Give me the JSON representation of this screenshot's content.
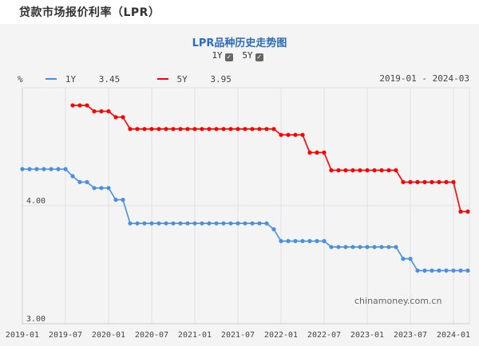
{
  "header": {
    "title": "贷款市场报价利率（LPR）"
  },
  "chart_header": {
    "title": "LPR品种历史走势图",
    "toggles": [
      {
        "label": "1Y",
        "checked": true
      },
      {
        "label": "5Y",
        "checked": true
      }
    ]
  },
  "legend": {
    "unit": "%",
    "items": [
      {
        "name": "1Y",
        "value": "3.45",
        "color": "#4a90e2"
      },
      {
        "name": "5Y",
        "value": "3.95",
        "color": "#ff0000"
      }
    ],
    "range": "2019-01 - 2024-03"
  },
  "watermark": "chinamoney.com.cn",
  "chart_data": {
    "type": "line",
    "title": "LPR品种历史走势图",
    "ylabel": "%",
    "ylim": [
      3.0,
      5.0
    ],
    "yticks": [
      "3.00",
      "4.00"
    ],
    "xticks": [
      "2019-01",
      "2019-07",
      "2020-01",
      "2020-07",
      "2021-01",
      "2021-07",
      "2022-01",
      "2022-07",
      "2023-01",
      "2023-07",
      "2024-01"
    ],
    "xlim": [
      "2019-01",
      "2024-03"
    ],
    "grid": true,
    "x": [
      "2019-01",
      "2019-02",
      "2019-03",
      "2019-04",
      "2019-05",
      "2019-06",
      "2019-07",
      "2019-08",
      "2019-09",
      "2019-10",
      "2019-11",
      "2019-12",
      "2020-01",
      "2020-02",
      "2020-03",
      "2020-04",
      "2020-05",
      "2020-06",
      "2020-07",
      "2020-08",
      "2020-09",
      "2020-10",
      "2020-11",
      "2020-12",
      "2021-01",
      "2021-02",
      "2021-03",
      "2021-04",
      "2021-05",
      "2021-06",
      "2021-07",
      "2021-08",
      "2021-09",
      "2021-10",
      "2021-11",
      "2021-12",
      "2022-01",
      "2022-02",
      "2022-03",
      "2022-04",
      "2022-05",
      "2022-06",
      "2022-07",
      "2022-08",
      "2022-09",
      "2022-10",
      "2022-11",
      "2022-12",
      "2023-01",
      "2023-02",
      "2023-03",
      "2023-04",
      "2023-05",
      "2023-06",
      "2023-07",
      "2023-08",
      "2023-09",
      "2023-10",
      "2023-11",
      "2023-12",
      "2024-01",
      "2024-02",
      "2024-03"
    ],
    "series": [
      {
        "name": "1Y",
        "color": "#4a90e2",
        "values": [
          4.31,
          4.31,
          4.31,
          4.31,
          4.31,
          4.31,
          4.31,
          4.25,
          4.2,
          4.2,
          4.15,
          4.15,
          4.15,
          4.05,
          4.05,
          3.85,
          3.85,
          3.85,
          3.85,
          3.85,
          3.85,
          3.85,
          3.85,
          3.85,
          3.85,
          3.85,
          3.85,
          3.85,
          3.85,
          3.85,
          3.85,
          3.85,
          3.85,
          3.85,
          3.85,
          3.8,
          3.7,
          3.7,
          3.7,
          3.7,
          3.7,
          3.7,
          3.7,
          3.65,
          3.65,
          3.65,
          3.65,
          3.65,
          3.65,
          3.65,
          3.65,
          3.65,
          3.65,
          3.55,
          3.55,
          3.45,
          3.45,
          3.45,
          3.45,
          3.45,
          3.45,
          3.45,
          3.45
        ]
      },
      {
        "name": "5Y",
        "color": "#ff0000",
        "values": [
          null,
          null,
          null,
          null,
          null,
          null,
          null,
          4.85,
          4.85,
          4.85,
          4.8,
          4.8,
          4.8,
          4.75,
          4.75,
          4.65,
          4.65,
          4.65,
          4.65,
          4.65,
          4.65,
          4.65,
          4.65,
          4.65,
          4.65,
          4.65,
          4.65,
          4.65,
          4.65,
          4.65,
          4.65,
          4.65,
          4.65,
          4.65,
          4.65,
          4.65,
          4.6,
          4.6,
          4.6,
          4.6,
          4.45,
          4.45,
          4.45,
          4.3,
          4.3,
          4.3,
          4.3,
          4.3,
          4.3,
          4.3,
          4.3,
          4.3,
          4.3,
          4.2,
          4.2,
          4.2,
          4.2,
          4.2,
          4.2,
          4.2,
          4.2,
          3.95,
          3.95
        ]
      }
    ]
  }
}
